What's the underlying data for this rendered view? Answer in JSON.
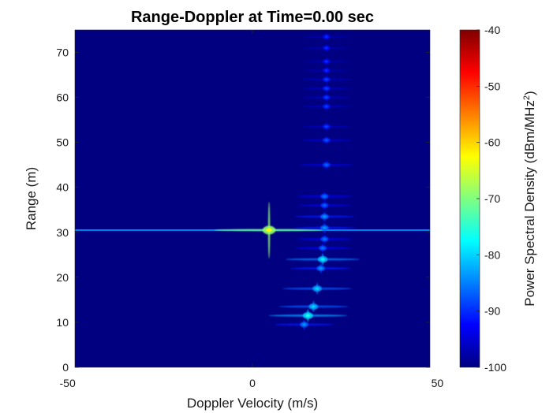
{
  "chart_data": {
    "type": "heatmap",
    "title": "Range-Doppler at Time=0.00 sec",
    "xlabel": "Doppler Velocity (m/s)",
    "ylabel": "Range (m)",
    "xlim": [
      -48,
      48
    ],
    "ylim": [
      0,
      75
    ],
    "xaxis_ticks": [
      -50,
      0,
      50
    ],
    "xaxis_tick_labels": [
      "-50",
      "0",
      "50"
    ],
    "yaxis_ticks": [
      0,
      10,
      20,
      30,
      40,
      50,
      60,
      70
    ],
    "yaxis_tick_labels": [
      "0",
      "10",
      "20",
      "30",
      "40",
      "50",
      "60",
      "70"
    ],
    "grid": false,
    "background_level": -100,
    "colorbar": {
      "label_main": "Power Spectral Density (dBm/MHz",
      "label_sup": "2",
      "label_end": ")",
      "range": [
        -100,
        -40
      ],
      "ticks": [
        -100,
        -90,
        -80,
        -70,
        -60,
        -50,
        -40
      ],
      "tick_labels": [
        "-100",
        "-90",
        "-80",
        "-70",
        "-60",
        "-50",
        "-40"
      ],
      "colormap": "jet"
    },
    "horizontal_streak": {
      "range_m": 30.5,
      "level": -84
    },
    "targets": [
      {
        "velocity_ms": 4.5,
        "range_m": 30.5,
        "peak": -63
      },
      {
        "velocity_ms": 15.0,
        "range_m": 11.5,
        "peak": -76
      },
      {
        "velocity_ms": 14.0,
        "range_m": 9.5,
        "peak": -84
      },
      {
        "velocity_ms": 16.5,
        "range_m": 13.5,
        "peak": -80
      },
      {
        "velocity_ms": 17.5,
        "range_m": 17.5,
        "peak": -80
      },
      {
        "velocity_ms": 18.5,
        "range_m": 22.0,
        "peak": -84
      },
      {
        "velocity_ms": 19.0,
        "range_m": 24.0,
        "peak": -78
      },
      {
        "velocity_ms": 19.0,
        "range_m": 26.5,
        "peak": -86
      },
      {
        "velocity_ms": 19.5,
        "range_m": 28.5,
        "peak": -86
      },
      {
        "velocity_ms": 19.5,
        "range_m": 31.0,
        "peak": -84
      },
      {
        "velocity_ms": 19.5,
        "range_m": 33.5,
        "peak": -84
      },
      {
        "velocity_ms": 19.5,
        "range_m": 36.0,
        "peak": -87
      },
      {
        "velocity_ms": 19.5,
        "range_m": 38.0,
        "peak": -86
      },
      {
        "velocity_ms": 20.0,
        "range_m": 45.0,
        "peak": -87
      },
      {
        "velocity_ms": 20.0,
        "range_m": 50.5,
        "peak": -88
      },
      {
        "velocity_ms": 20.0,
        "range_m": 53.5,
        "peak": -89
      },
      {
        "velocity_ms": 20.0,
        "range_m": 58.0,
        "peak": -89
      },
      {
        "velocity_ms": 20.0,
        "range_m": 60.0,
        "peak": -89
      },
      {
        "velocity_ms": 20.0,
        "range_m": 62.0,
        "peak": -89
      },
      {
        "velocity_ms": 20.0,
        "range_m": 64.0,
        "peak": -89
      },
      {
        "velocity_ms": 20.0,
        "range_m": 66.0,
        "peak": -90
      },
      {
        "velocity_ms": 20.0,
        "range_m": 68.0,
        "peak": -90
      },
      {
        "velocity_ms": 20.0,
        "range_m": 71.0,
        "peak": -90
      },
      {
        "velocity_ms": 20.0,
        "range_m": 73.5,
        "peak": -90
      }
    ]
  }
}
